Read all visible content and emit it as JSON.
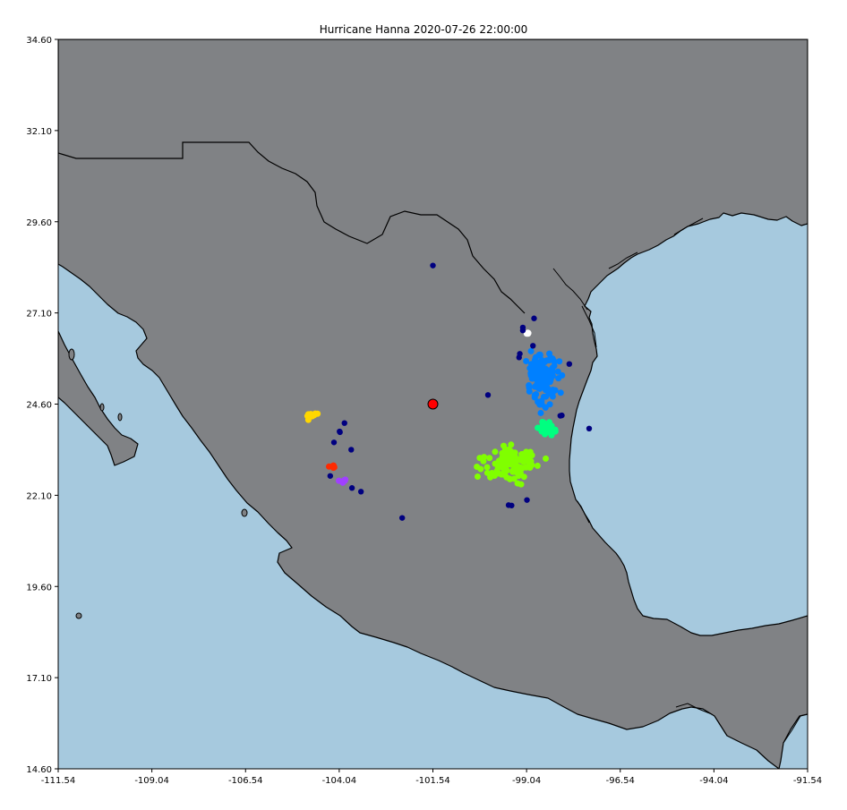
{
  "title": "Hurricane Hanna 2020-07-26 22:00:00",
  "colors": {
    "land": "#808285",
    "water": "#a6c9de",
    "coast": "#000000"
  },
  "axes": {
    "xlim": [
      -111.54,
      -91.54
    ],
    "ylim": [
      14.6,
      34.6
    ],
    "xticks": [
      -111.54,
      -109.04,
      -106.54,
      -104.04,
      -101.54,
      -99.04,
      -96.54,
      -94.04,
      -91.54
    ],
    "yticks": [
      34.6,
      32.1,
      29.6,
      27.1,
      24.6,
      22.1,
      19.6,
      17.1,
      14.6
    ],
    "xtick_labels": [
      "-111.54",
      "-109.04",
      "-106.54",
      "-104.04",
      "-101.54",
      "-99.04",
      "-96.54",
      "-94.04",
      "-91.54"
    ],
    "ytick_labels": [
      "34.60",
      "32.10",
      "29.60",
      "27.10",
      "24.60",
      "22.10",
      "19.60",
      "17.10",
      "14.60"
    ]
  },
  "hurricane_center": {
    "lon": -101.54,
    "lat": 24.6,
    "color": "#ff0000"
  },
  "clusters": [
    {
      "name": "blue",
      "color": "#0080ff",
      "center": [
        -98.6,
        25.3
      ],
      "spread": [
        0.3,
        0.55
      ],
      "n": 120
    },
    {
      "name": "spring-green",
      "color": "#00ff80",
      "center": [
        -98.5,
        23.9
      ],
      "spread": [
        0.2,
        0.16
      ],
      "n": 30
    },
    {
      "name": "lime",
      "color": "#80ff00",
      "center": [
        -99.5,
        22.95
      ],
      "spread": [
        0.6,
        0.4
      ],
      "n": 110
    },
    {
      "name": "yellow",
      "color": "#ffd700",
      "center": [
        -104.8,
        24.3
      ],
      "spread": [
        0.15,
        0.1
      ],
      "n": 8
    },
    {
      "name": "red-orange",
      "color": "#ff2a00",
      "center": [
        -104.2,
        22.9
      ],
      "spread": [
        0.1,
        0.06
      ],
      "n": 6
    },
    {
      "name": "purple",
      "color": "#a040ff",
      "center": [
        -103.9,
        22.5
      ],
      "spread": [
        0.12,
        0.05
      ],
      "n": 6
    },
    {
      "name": "white",
      "color": "#ffffff",
      "center": [
        -99.0,
        26.55
      ],
      "spread": [
        0.06,
        0.03
      ],
      "n": 4
    }
  ],
  "navy_points": {
    "color": "#000080",
    "coords": [
      [
        -101.54,
        28.4
      ],
      [
        -99.14,
        26.7
      ],
      [
        -99.14,
        26.62
      ],
      [
        -98.84,
        26.95
      ],
      [
        -98.87,
        26.2
      ],
      [
        -99.24,
        25.88
      ],
      [
        -99.22,
        25.98
      ],
      [
        -97.9,
        25.7
      ],
      [
        -100.07,
        24.85
      ],
      [
        -98.1,
        24.29
      ],
      [
        -98.14,
        24.28
      ],
      [
        -97.37,
        23.93
      ],
      [
        -103.9,
        24.08
      ],
      [
        -104.03,
        23.85
      ],
      [
        -104.02,
        23.83
      ],
      [
        -104.18,
        23.55
      ],
      [
        -103.72,
        23.35
      ],
      [
        -104.28,
        22.63
      ],
      [
        -103.7,
        22.3
      ],
      [
        -103.46,
        22.2
      ],
      [
        -102.36,
        21.48
      ],
      [
        -99.44,
        21.82
      ],
      [
        -99.52,
        21.83
      ],
      [
        -99.03,
        21.97
      ]
    ]
  }
}
